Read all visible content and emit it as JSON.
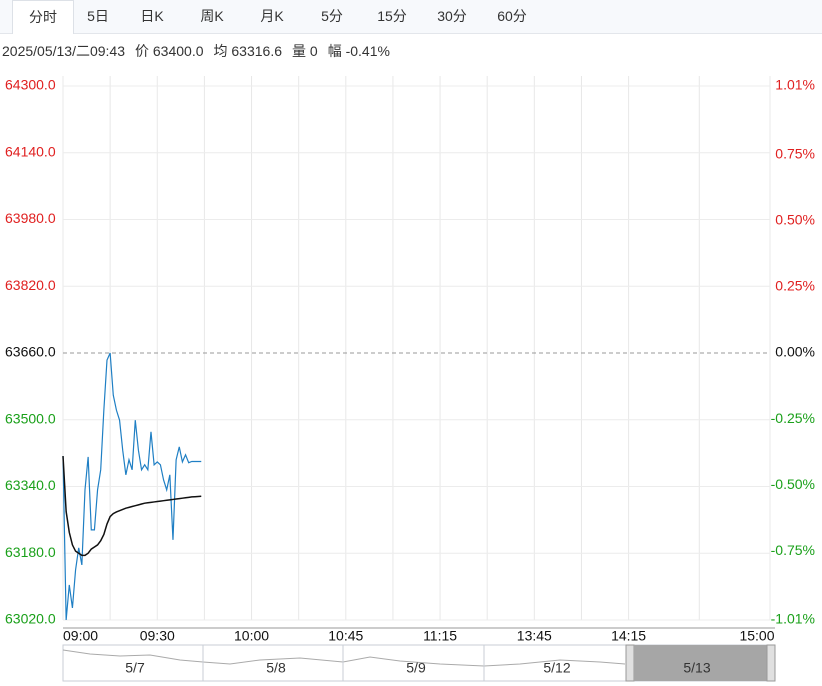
{
  "tabs": [
    "分时",
    "5日",
    "日K",
    "周K",
    "月K",
    "5分",
    "15分",
    "30分",
    "60分"
  ],
  "info": [
    "2025/05/13/二09:43",
    "价 63400.0",
    "均 63316.6",
    "量 0",
    "幅 -0.41%"
  ],
  "chart_data": {
    "type": "line",
    "x": [
      0,
      1,
      2,
      3,
      4,
      5,
      6,
      7,
      8,
      9,
      10,
      11,
      12,
      13,
      14,
      15,
      16,
      17,
      18,
      19,
      20,
      21,
      22,
      23,
      24,
      25,
      26,
      27,
      28,
      29,
      30,
      31,
      32,
      33,
      34,
      35,
      36,
      37,
      38,
      39,
      40,
      41,
      42,
      43,
      44
    ],
    "series": [
      {
        "color": "#1f7fc4",
        "values": [
          63413,
          63020,
          63104,
          63049,
          63140,
          63193,
          63152,
          63332,
          63411,
          63236,
          63236,
          63332,
          63380,
          63523,
          63643,
          63660,
          63559,
          63523,
          63499,
          63427,
          63368,
          63404,
          63380,
          63499,
          63427,
          63380,
          63392,
          63380,
          63471,
          63392,
          63399,
          63392,
          63356,
          63332,
          63368,
          63212,
          63404,
          63435,
          63399,
          63416,
          63397,
          63400,
          63400,
          63400,
          63400
        ]
      },
      {
        "color": "#111111",
        "values": [
          63413,
          63280,
          63230,
          63200,
          63185,
          63180,
          63175,
          63175,
          63180,
          63190,
          63195,
          63200,
          63210,
          63225,
          63250,
          63268,
          63275,
          63279,
          63282,
          63285,
          63288,
          63290,
          63292,
          63294,
          63296,
          63298,
          63300,
          63301,
          63302,
          63303,
          63304,
          63305,
          63306,
          63307,
          63308,
          63309,
          63310,
          63311,
          63312,
          63313,
          63314,
          63315,
          63315.5,
          63316,
          63316.6
        ]
      }
    ],
    "xlim": [
      0,
      225
    ],
    "xticks": [
      {
        "value": 0,
        "label": "09:00"
      },
      {
        "value": 30,
        "label": "09:30"
      },
      {
        "value": 60,
        "label": "10:00"
      },
      {
        "value": 90,
        "label": "10:45"
      },
      {
        "value": 120,
        "label": "11:15"
      },
      {
        "value": 150,
        "label": "13:45"
      },
      {
        "value": 180,
        "label": "14:15"
      },
      {
        "value": 225,
        "label": "15:00"
      }
    ],
    "ylim": [
      63020,
      64300
    ],
    "yticks": [
      {
        "value": 64300,
        "label": "64300.0"
      },
      {
        "value": 64140,
        "label": "64140.0"
      },
      {
        "value": 63980,
        "label": "63980.0"
      },
      {
        "value": 63820,
        "label": "63820.0"
      },
      {
        "value": 63660,
        "label": "63660.0"
      },
      {
        "value": 63500,
        "label": "63500.0"
      },
      {
        "value": 63340,
        "label": "63340.0"
      },
      {
        "value": 63180,
        "label": "63180.0"
      },
      {
        "value": 63020,
        "label": "63020.0"
      }
    ],
    "y2lim": [
      -1.01,
      1.01
    ],
    "y2ticks": [
      {
        "value": 1.01,
        "label": "1.01%"
      },
      {
        "value": 0.75,
        "label": "0.75%"
      },
      {
        "value": 0.5,
        "label": "0.50%"
      },
      {
        "value": 0.25,
        "label": "0.25%"
      },
      {
        "value": 0,
        "label": "0.00%"
      },
      {
        "value": -0.25,
        "label": "-0.25%"
      },
      {
        "value": -0.5,
        "label": "-0.50%"
      },
      {
        "value": -0.75,
        "label": "-0.75%"
      },
      {
        "value": -1.01,
        "label": "-1.01%"
      }
    ],
    "grid": true
  },
  "navigator": [
    "5/7",
    "5/8",
    "5/9",
    "5/12",
    "5/13"
  ]
}
